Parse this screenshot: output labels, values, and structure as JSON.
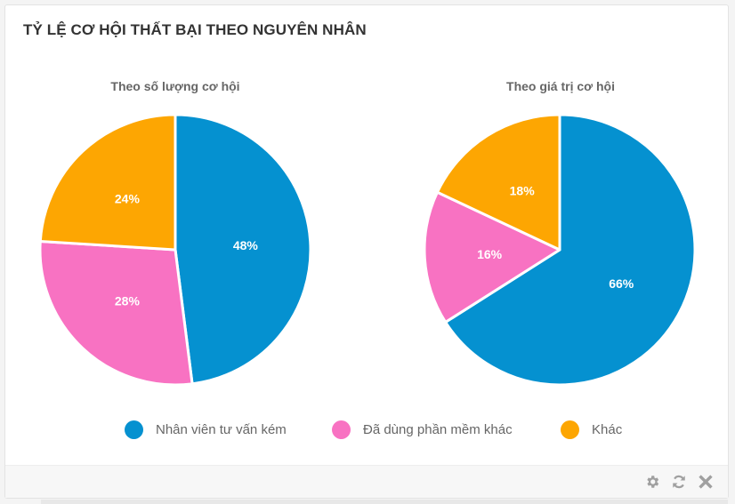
{
  "widget": {
    "title": "TỶ LỆ CƠ HỘI THẤT BẠI THEO NGUYÊN NHÂN"
  },
  "chart_data": [
    {
      "type": "pie",
      "title": "Theo số lượng cơ hội",
      "categories": [
        "Nhân viên tư vấn kém",
        "Đã dùng phần mềm khác",
        "Khác"
      ],
      "values": [
        48,
        28,
        24
      ],
      "labels": [
        "48%",
        "28%",
        "24%"
      ],
      "colors": [
        "#0591D0",
        "#F872C2",
        "#FDA602"
      ]
    },
    {
      "type": "pie",
      "title": "Theo giá trị cơ hội",
      "categories": [
        "Nhân viên tư vấn kém",
        "Đã dùng phần mềm khác",
        "Khác"
      ],
      "values": [
        66,
        16,
        18
      ],
      "labels": [
        "66%",
        "16%",
        "18%"
      ],
      "colors": [
        "#0591D0",
        "#F872C2",
        "#FDA602"
      ]
    }
  ],
  "legend": {
    "position": "bottom",
    "items": [
      {
        "label": "Nhân viên tư vấn kém",
        "color": "#0591D0"
      },
      {
        "label": "Đã dùng phần mềm khác",
        "color": "#F872C2"
      },
      {
        "label": "Khác",
        "color": "#FDA602"
      }
    ]
  },
  "toolbar": {
    "icons": [
      "gear-icon",
      "refresh-icon",
      "close-icon"
    ]
  }
}
